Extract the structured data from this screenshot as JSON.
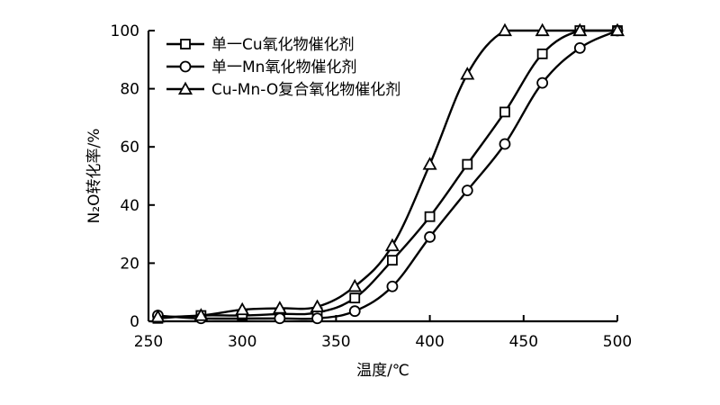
{
  "chart_data": {
    "type": "line",
    "title": "",
    "xlabel": "温度/℃",
    "ylabel": "N₂O转化率/%",
    "xlim": [
      250,
      500
    ],
    "ylim": [
      0,
      100
    ],
    "xticks": [
      250,
      300,
      350,
      400,
      450,
      500
    ],
    "yticks": [
      0,
      20,
      40,
      60,
      80,
      100
    ],
    "grid": false,
    "legend_position": "top-left",
    "series": [
      {
        "name": "单一Cu氧化物催化剂",
        "marker": "square",
        "x": [
          255,
          278,
          300,
          320,
          340,
          360,
          380,
          400,
          420,
          440,
          460,
          480,
          500
        ],
        "y": [
          1,
          2,
          2,
          2.5,
          3,
          8,
          21,
          36,
          54,
          72,
          92,
          100,
          100
        ]
      },
      {
        "name": "单一Mn氧化物催化剂",
        "marker": "circle",
        "x": [
          255,
          278,
          320,
          340,
          360,
          380,
          400,
          420,
          440,
          460,
          480,
          500
        ],
        "y": [
          2,
          1,
          1,
          1,
          3.5,
          12,
          29,
          45,
          61,
          82,
          94,
          100
        ]
      },
      {
        "name": "Cu-Mn-O复合氧化物催化剂",
        "marker": "triangle",
        "x": [
          255,
          278,
          300,
          320,
          340,
          360,
          380,
          400,
          420,
          440,
          460,
          480,
          500
        ],
        "y": [
          1.5,
          2,
          4,
          4.5,
          5,
          12,
          26,
          54,
          85,
          100,
          100,
          100,
          100
        ]
      }
    ]
  }
}
